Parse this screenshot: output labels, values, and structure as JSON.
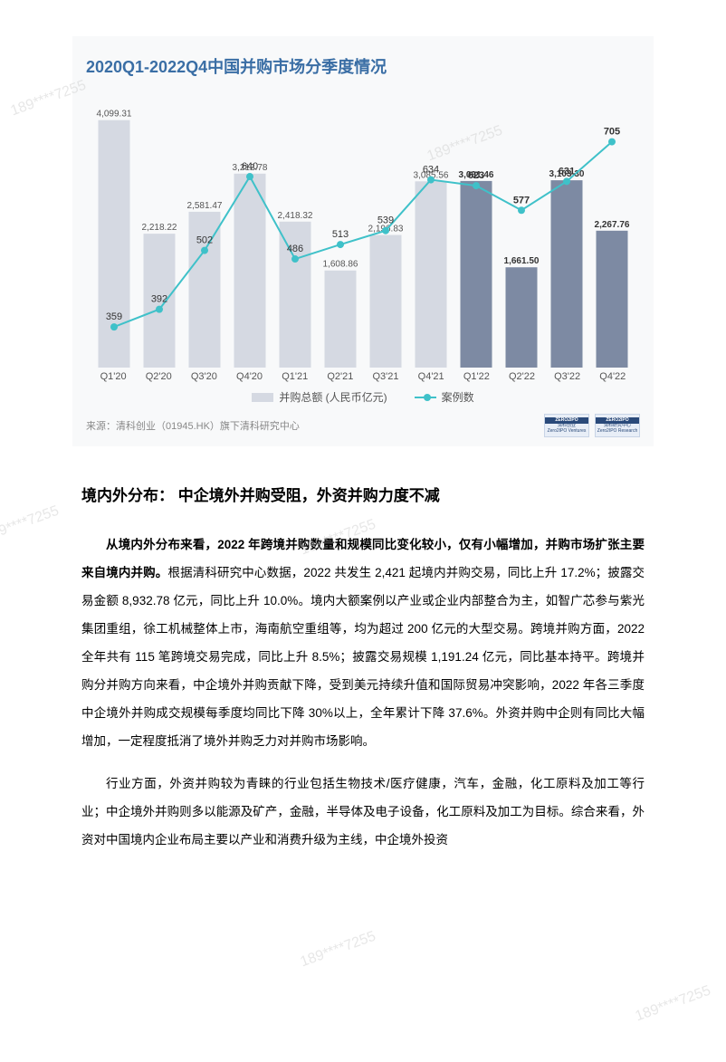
{
  "watermarks": [
    "189****7255",
    "189****7255",
    "189****7255",
    "189****7255",
    "189****7255",
    "189****7255"
  ],
  "chart": {
    "title": "2020Q1-2022Q4中国并购市场分季度情况",
    "type": "bar+line",
    "background_color": "#f8f9fa",
    "title_color": "#3a6ea5",
    "title_fontsize": 18,
    "categories": [
      "Q1'20",
      "Q2'20",
      "Q3'20",
      "Q4'20",
      "Q1'21",
      "Q2'21",
      "Q3'21",
      "Q4'21",
      "Q1'22",
      "Q2'22",
      "Q3'22",
      "Q4'22"
    ],
    "bars": {
      "label": "并购总额 (人民币亿元)",
      "values": [
        4099.31,
        2218.22,
        2581.47,
        3212.78,
        2418.32,
        1608.86,
        2196.83,
        3085.56,
        3091.46,
        1661.5,
        3103.3,
        2267.76
      ],
      "colors_light": "#d5d9e2",
      "colors_dark": "#7d8aa3",
      "split_index": 8,
      "y_max": 4200,
      "bar_width_ratio": 0.7
    },
    "line": {
      "label": "案例数",
      "values": [
        359,
        392,
        502,
        640,
        486,
        513,
        539,
        634,
        623,
        577,
        631,
        705
      ],
      "color": "#3fc1c9",
      "marker_radius": 4,
      "line_width": 2,
      "y_min": 300,
      "y_max": 750
    },
    "source": "来源：清科创业（01945.HK）旗下清科研究中心",
    "logo1": {
      "top": "ZERO2IPO",
      "line1": "清科创业",
      "line2": "Zero2IPO Ventures"
    },
    "logo2": {
      "top": "ZERO2IPO",
      "line1": "清科研究中心",
      "line2": "Zero2IPO Research"
    }
  },
  "section_title": "境内外分布： 中企境外并购受阻，外资并购力度不减",
  "para1_lead": "从境内外分布来看，2022 年跨境并购数量和规模同比变化较小，仅有小幅增加，并购市场扩张主要来自境内并购。",
  "para1_rest": "根据清科研究中心数据，2022 共发生 2,421 起境内并购交易，同比上升 17.2%；披露交易金额 8,932.78 亿元，同比上升 10.0%。境内大额案例以产业或企业内部整合为主，如智广芯参与紫光集团重组，徐工机械整体上市，海南航空重组等，均为超过 200 亿元的大型交易。跨境并购方面，2022 全年共有 115 笔跨境交易完成，同比上升 8.5%；披露交易规模 1,191.24 亿元，同比基本持平。跨境并购分并购方向来看，中企境外并购贡献下降，受到美元持续升值和国际贸易冲突影响，2022 年各三季度中企境外并购成交规模每季度均同比下降 30%以上，全年累计下降 37.6%。外资并购中企则有同比大幅增加，一定程度抵消了境外并购乏力对并购市场影响。",
  "para2": "行业方面，外资并购较为青睐的行业包括生物技术/医疗健康，汽车，金融，化工原料及加工等行业；中企境外并购则多以能源及矿产，金融，半导体及电子设备，化工原料及加工为目标。综合来看，外资对中国境内企业布局主要以产业和消费升级为主线，中企境外投资"
}
